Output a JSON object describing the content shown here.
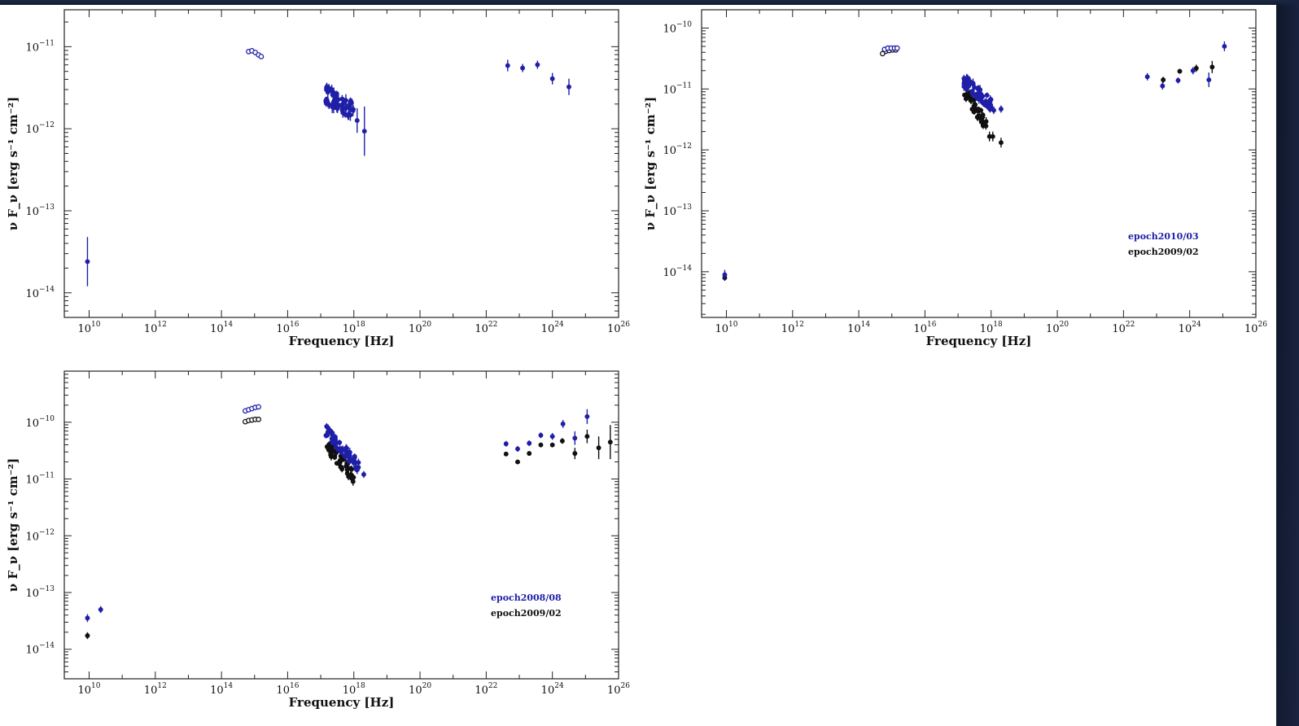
{
  "colors": {
    "blue": "#1f1fa8",
    "black": "#111111"
  },
  "chart_data": [
    {
      "type": "scatter",
      "title": "",
      "xlabel": "Frequency [Hz]",
      "ylabel": "ν F_ν [erg s⁻¹ cm⁻²]",
      "x_scale": "log",
      "y_scale": "log",
      "xlim_exp": [
        9.25,
        26
      ],
      "ylim_exp": [
        -14.3,
        -10.55
      ],
      "x_ticks": [
        {
          "base": "10",
          "exp": "10",
          "e": 10
        },
        {
          "base": "10",
          "exp": "12",
          "e": 12
        },
        {
          "base": "10",
          "exp": "14",
          "e": 14
        },
        {
          "base": "10",
          "exp": "16",
          "e": 16
        },
        {
          "base": "10",
          "exp": "18",
          "e": 18
        },
        {
          "base": "10",
          "exp": "20",
          "e": 20
        },
        {
          "base": "10",
          "exp": "22",
          "e": 22
        },
        {
          "base": "10",
          "exp": "24",
          "e": 24
        },
        {
          "base": "10",
          "exp": "26",
          "e": 26
        }
      ],
      "y_ticks": [
        {
          "base": "10",
          "exp": "−11",
          "e": -11
        },
        {
          "base": "10",
          "exp": "−12",
          "e": -12
        },
        {
          "base": "10",
          "exp": "−13",
          "e": -13
        },
        {
          "base": "10",
          "exp": "−14",
          "e": -14
        }
      ],
      "legend": [],
      "series": [
        {
          "color": "blue",
          "points": [
            {
              "x": 9.95,
              "y": -13.62,
              "err": 0.3
            },
            {
              "x": 14.82,
              "y": -11.06,
              "open": true
            },
            {
              "x": 14.92,
              "y": -11.05,
              "open": true
            },
            {
              "x": 15.02,
              "y": -11.07,
              "open": true
            },
            {
              "x": 15.12,
              "y": -11.1,
              "open": true
            },
            {
              "x": 15.2,
              "y": -11.12,
              "open": true
            },
            {
              "x": 22.65,
              "y": -11.23,
              "err": 0.07
            },
            {
              "x": 23.1,
              "y": -11.26,
              "err": 0.05
            },
            {
              "x": 23.55,
              "y": -11.22,
              "err": 0.05
            },
            {
              "x": 24.0,
              "y": -11.39,
              "err": 0.07
            },
            {
              "x": 24.5,
              "y": -11.49,
              "err": 0.1
            }
          ],
          "cluster": {
            "x0": 17.15,
            "x1": 18.0,
            "y0": -11.6,
            "y1": -11.78,
            "spread": 0.12,
            "n": 60,
            "err": 0.05,
            "tail": [
              {
                "x": 18.1,
                "y": -11.9,
                "err": 0.15
              },
              {
                "x": 18.32,
                "y": -12.03,
                "err": 0.3
              }
            ]
          }
        }
      ]
    },
    {
      "type": "scatter",
      "title": "",
      "xlabel": "Frequency [Hz]",
      "ylabel": "ν F_ν [erg s⁻¹ cm⁻²]",
      "x_scale": "log",
      "y_scale": "log",
      "xlim_exp": [
        9.25,
        26
      ],
      "ylim_exp": [
        -14.75,
        -9.7
      ],
      "x_ticks": [
        {
          "base": "10",
          "exp": "10",
          "e": 10
        },
        {
          "base": "10",
          "exp": "12",
          "e": 12
        },
        {
          "base": "10",
          "exp": "14",
          "e": 14
        },
        {
          "base": "10",
          "exp": "16",
          "e": 16
        },
        {
          "base": "10",
          "exp": "18",
          "e": 18
        },
        {
          "base": "10",
          "exp": "20",
          "e": 20
        },
        {
          "base": "10",
          "exp": "22",
          "e": 22
        },
        {
          "base": "10",
          "exp": "24",
          "e": 24
        },
        {
          "base": "10",
          "exp": "26",
          "e": 26
        }
      ],
      "y_ticks": [
        {
          "base": "10",
          "exp": "−10",
          "e": -10
        },
        {
          "base": "10",
          "exp": "−11",
          "e": -11
        },
        {
          "base": "10",
          "exp": "−12",
          "e": -12
        },
        {
          "base": "10",
          "exp": "−13",
          "e": -13
        },
        {
          "base": "10",
          "exp": "−14",
          "e": -14
        }
      ],
      "legend": [
        {
          "label": "epoch2010/03",
          "color": "blue"
        },
        {
          "label": "epoch2009/02",
          "color": "black"
        }
      ],
      "series": [
        {
          "color": "black",
          "points": [
            {
              "x": 9.95,
              "y": -14.1,
              "err": 0.05
            },
            {
              "x": 14.72,
              "y": -10.42,
              "open": true
            },
            {
              "x": 14.82,
              "y": -10.38,
              "open": true
            },
            {
              "x": 14.92,
              "y": -10.37,
              "open": true
            },
            {
              "x": 15.02,
              "y": -10.36,
              "open": true
            },
            {
              "x": 15.12,
              "y": -10.36,
              "open": true
            },
            {
              "x": 23.2,
              "y": -10.85,
              "err": 0.05
            },
            {
              "x": 23.7,
              "y": -10.71,
              "err": 0.04
            },
            {
              "x": 24.2,
              "y": -10.66,
              "err": 0.06
            },
            {
              "x": 24.68,
              "y": -10.64,
              "err": 0.1
            }
          ],
          "cluster": {
            "x0": 17.15,
            "x1": 17.9,
            "y0": -11.0,
            "y1": -11.6,
            "spread": 0.12,
            "n": 40,
            "err": 0.05,
            "tail": [
              {
                "x": 17.95,
                "y": -11.78,
                "err": 0.08
              },
              {
                "x": 18.05,
                "y": -11.78,
                "err": 0.08
              },
              {
                "x": 18.3,
                "y": -11.88,
                "err": 0.08
              }
            ]
          }
        },
        {
          "color": "blue",
          "points": [
            {
              "x": 9.95,
              "y": -14.05,
              "err": 0.08
            },
            {
              "x": 14.78,
              "y": -10.35,
              "open": true
            },
            {
              "x": 14.88,
              "y": -10.33,
              "open": true
            },
            {
              "x": 14.98,
              "y": -10.33,
              "open": true
            },
            {
              "x": 15.08,
              "y": -10.33,
              "open": true
            },
            {
              "x": 15.16,
              "y": -10.33,
              "open": true
            },
            {
              "x": 22.72,
              "y": -10.8,
              "err": 0.06
            },
            {
              "x": 23.18,
              "y": -10.95,
              "err": 0.06
            },
            {
              "x": 23.65,
              "y": -10.86,
              "err": 0.05
            },
            {
              "x": 24.1,
              "y": -10.7,
              "err": 0.06
            },
            {
              "x": 24.58,
              "y": -10.85,
              "err": 0.12
            },
            {
              "x": 25.05,
              "y": -10.3,
              "err": 0.08
            }
          ],
          "cluster": {
            "x0": 17.15,
            "x1": 18.0,
            "y0": -10.85,
            "y1": -11.25,
            "spread": 0.1,
            "n": 60,
            "err": 0.05,
            "tail": [
              {
                "x": 18.08,
                "y": -11.35,
                "err": 0.06
              },
              {
                "x": 18.3,
                "y": -11.33,
                "err": 0.06
              }
            ]
          }
        }
      ]
    },
    {
      "type": "scatter",
      "title": "",
      "xlabel": "Frequency [Hz]",
      "ylabel": "ν F_ν [erg s⁻¹ cm⁻²]",
      "x_scale": "log",
      "y_scale": "log",
      "xlim_exp": [
        9.25,
        26
      ],
      "ylim_exp": [
        -14.52,
        -9.1
      ],
      "x_ticks": [
        {
          "base": "10",
          "exp": "10",
          "e": 10
        },
        {
          "base": "10",
          "exp": "12",
          "e": 12
        },
        {
          "base": "10",
          "exp": "14",
          "e": 14
        },
        {
          "base": "10",
          "exp": "16",
          "e": 16
        },
        {
          "base": "10",
          "exp": "18",
          "e": 18
        },
        {
          "base": "10",
          "exp": "20",
          "e": 20
        },
        {
          "base": "10",
          "exp": "22",
          "e": 22
        },
        {
          "base": "10",
          "exp": "24",
          "e": 24
        },
        {
          "base": "10",
          "exp": "26",
          "e": 26
        }
      ],
      "y_ticks": [
        {
          "base": "10",
          "exp": "−10",
          "e": -10
        },
        {
          "base": "10",
          "exp": "−11",
          "e": -11
        },
        {
          "base": "10",
          "exp": "−12",
          "e": -12
        },
        {
          "base": "10",
          "exp": "−13",
          "e": -13
        },
        {
          "base": "10",
          "exp": "−14",
          "e": -14
        }
      ],
      "legend": [
        {
          "label": "epoch2008/08",
          "color": "blue"
        },
        {
          "label": "epoch2009/02",
          "color": "black"
        }
      ],
      "series": [
        {
          "color": "black",
          "points": [
            {
              "x": 9.95,
              "y": -13.76,
              "err": 0.06
            },
            {
              "x": 14.72,
              "y": -9.99,
              "open": true
            },
            {
              "x": 14.82,
              "y": -9.97,
              "open": true
            },
            {
              "x": 14.92,
              "y": -9.96,
              "open": true
            },
            {
              "x": 15.02,
              "y": -9.95,
              "open": true
            },
            {
              "x": 15.12,
              "y": -9.95,
              "open": true
            },
            {
              "x": 22.6,
              "y": -10.56,
              "err": 0.03
            },
            {
              "x": 22.95,
              "y": -10.7,
              "err": 0.03
            },
            {
              "x": 23.3,
              "y": -10.55,
              "err": 0.03
            },
            {
              "x": 23.65,
              "y": -10.4,
              "err": 0.04
            },
            {
              "x": 24.0,
              "y": -10.4,
              "err": 0.04
            },
            {
              "x": 24.3,
              "y": -10.33,
              "err": 0.05
            },
            {
              "x": 24.68,
              "y": -10.55,
              "err": 0.1
            },
            {
              "x": 25.05,
              "y": -10.25,
              "err": 0.12
            },
            {
              "x": 25.4,
              "y": -10.45,
              "err": 0.2
            },
            {
              "x": 25.75,
              "y": -10.35,
              "err": 0.3
            }
          ],
          "cluster": {
            "x0": 17.15,
            "x1": 18.0,
            "y0": -10.38,
            "y1": -10.95,
            "spread": 0.12,
            "n": 50,
            "err": 0.05,
            "tail": []
          }
        },
        {
          "color": "blue",
          "points": [
            {
              "x": 9.95,
              "y": -13.45,
              "err": 0.07
            },
            {
              "x": 10.35,
              "y": -13.3,
              "err": 0.06
            },
            {
              "x": 14.72,
              "y": -9.8,
              "open": true
            },
            {
              "x": 14.82,
              "y": -9.78,
              "open": true
            },
            {
              "x": 14.92,
              "y": -9.76,
              "open": true
            },
            {
              "x": 15.02,
              "y": -9.74,
              "open": true
            },
            {
              "x": 15.12,
              "y": -9.73,
              "open": true
            },
            {
              "x": 22.6,
              "y": -10.38,
              "err": 0.05
            },
            {
              "x": 22.95,
              "y": -10.47,
              "err": 0.05
            },
            {
              "x": 23.3,
              "y": -10.37,
              "err": 0.05
            },
            {
              "x": 23.65,
              "y": -10.23,
              "err": 0.05
            },
            {
              "x": 24.0,
              "y": -10.25,
              "err": 0.06
            },
            {
              "x": 24.32,
              "y": -10.03,
              "err": 0.07
            },
            {
              "x": 24.68,
              "y": -10.28,
              "err": 0.12
            },
            {
              "x": 25.05,
              "y": -9.9,
              "err": 0.13
            }
          ],
          "cluster": {
            "x0": 17.15,
            "x1": 18.15,
            "y0": -10.15,
            "y1": -10.78,
            "spread": 0.1,
            "n": 60,
            "err": 0.05,
            "tail": [
              {
                "x": 18.3,
                "y": -10.92,
                "err": 0.06
              }
            ]
          }
        }
      ]
    }
  ]
}
